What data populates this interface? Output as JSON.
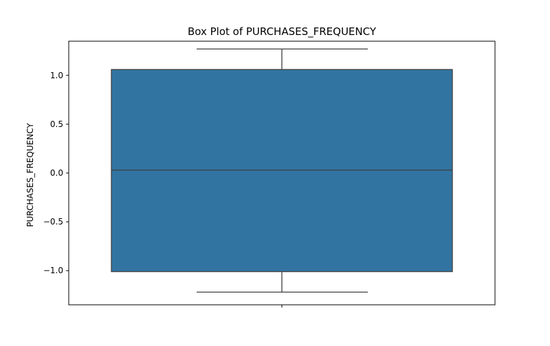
{
  "chart_data": {
    "type": "box",
    "title": "Box Plot of PURCHASES_FREQUENCY",
    "xlabel": "",
    "ylabel": "PURCHASES_FREQUENCY",
    "ylim": [
      -1.35,
      1.35
    ],
    "yticks": [
      -1.0,
      -0.5,
      0.0,
      0.5,
      1.0
    ],
    "ytick_labels": [
      "−1.0",
      "−0.5",
      "0.0",
      "0.5",
      "1.0"
    ],
    "grid": false,
    "box": {
      "whisker_low": -1.22,
      "q1": -1.01,
      "median": 0.03,
      "q3": 1.06,
      "whisker_high": 1.27,
      "fill": "#3274a1",
      "line": "#3f3f3f"
    }
  }
}
